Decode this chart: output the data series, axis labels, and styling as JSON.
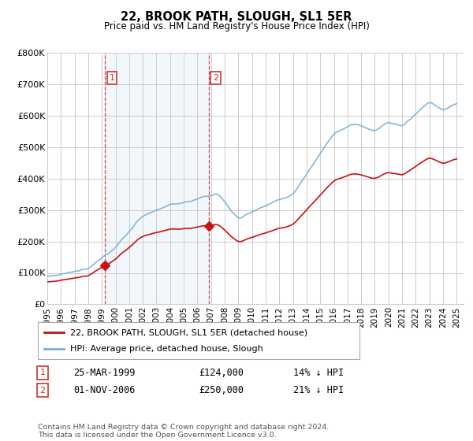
{
  "title": "22, BROOK PATH, SLOUGH, SL1 5ER",
  "subtitle": "Price paid vs. HM Land Registry's House Price Index (HPI)",
  "ylim": [
    0,
    800000
  ],
  "yticks": [
    0,
    100000,
    200000,
    300000,
    400000,
    500000,
    600000,
    700000,
    800000
  ],
  "hpi_color": "#7ab0d4",
  "price_color": "#cc1111",
  "vline_color": "#cc3333",
  "shade_color": "#ddeeff",
  "grid_color": "#cccccc",
  "purchase1": {
    "date_label": "25-MAR-1999",
    "price": 124000,
    "hpi_diff": "14% ↓ HPI",
    "x": 1999.23
  },
  "purchase2": {
    "date_label": "01-NOV-2006",
    "price": 250000,
    "hpi_diff": "21% ↓ HPI",
    "x": 2006.83
  },
  "legend_property": "22, BROOK PATH, SLOUGH, SL1 5ER (detached house)",
  "legend_hpi": "HPI: Average price, detached house, Slough",
  "footnote": "Contains HM Land Registry data © Crown copyright and database right 2024.\nThis data is licensed under the Open Government Licence v3.0.",
  "background_color": "#ffffff",
  "plot_bg_color": "#ffffff"
}
